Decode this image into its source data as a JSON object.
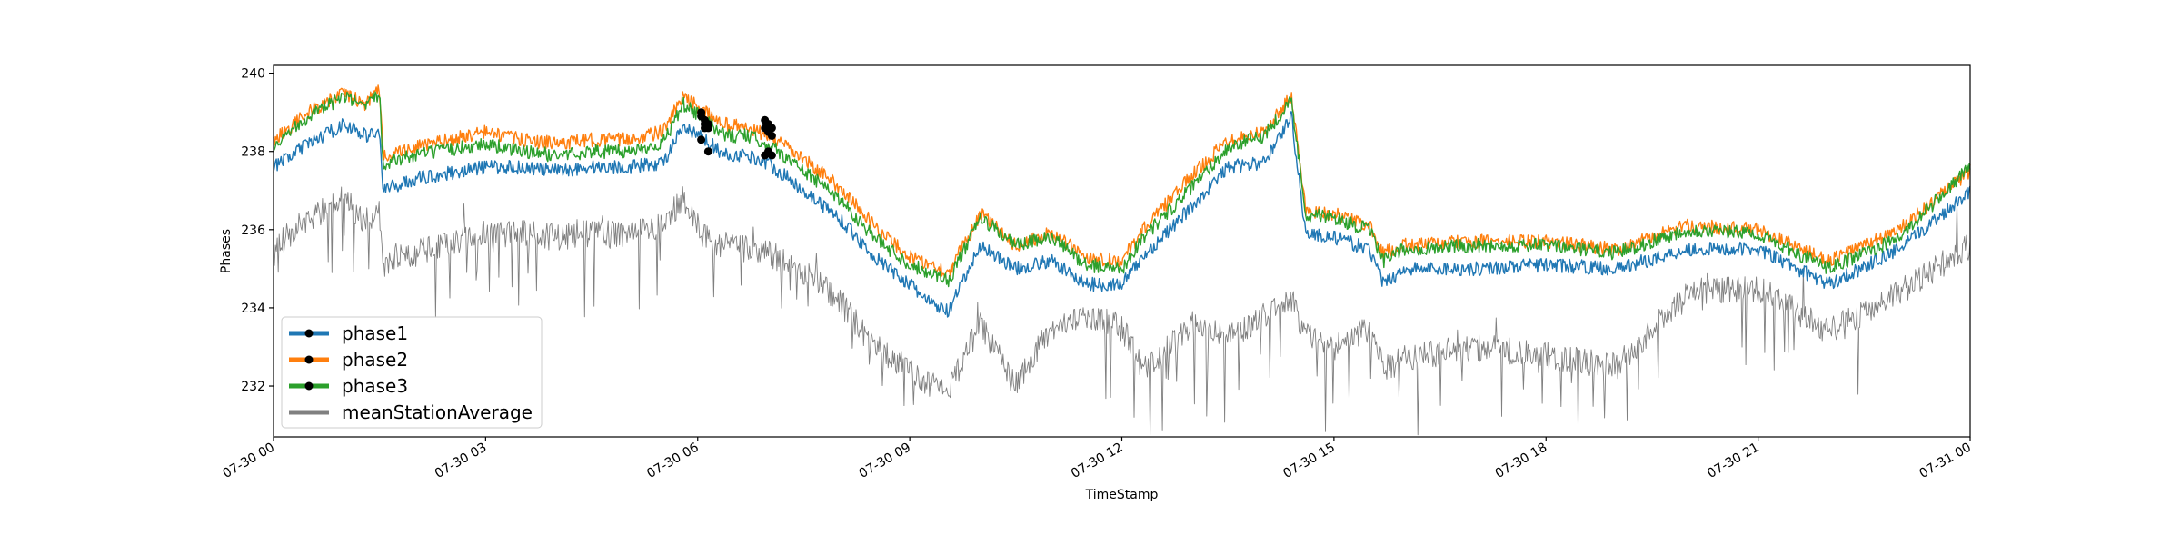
{
  "chart_data": {
    "type": "line",
    "title": "",
    "xlabel": "TimeStamp",
    "ylabel": "Phases",
    "x_ticks": [
      "07-30 00",
      "07-30 03",
      "07-30 06",
      "07-30 09",
      "07-30 12",
      "07-30 15",
      "07-30 18",
      "07-30 21",
      "07-31 00"
    ],
    "xlim_hours": [
      0,
      24
    ],
    "y_ticks": [
      "240",
      "238",
      "236",
      "234",
      "232"
    ],
    "y_tick_values": [
      240,
      238,
      236,
      234,
      232
    ],
    "ylim": [
      230.7,
      240.2
    ],
    "grid": false,
    "legend_position": "lower left",
    "x_hours": [
      0,
      0.5,
      1,
      1.3,
      1.5,
      1.55,
      2,
      3,
      3.5,
      4,
      4.5,
      5,
      5.5,
      5.8,
      6.1,
      6.4,
      6.7,
      7,
      7.5,
      8,
      8.5,
      9,
      9.3,
      9.55,
      10,
      10.5,
      11,
      11.5,
      12,
      12.3,
      13,
      13.5,
      14,
      14.4,
      14.6,
      15,
      15.5,
      15.7,
      16,
      17,
      18,
      19,
      20,
      21,
      22,
      23,
      24
    ],
    "series": [
      {
        "name": "phase1",
        "color": "#1f77b4",
        "values": [
          237.6,
          238.2,
          238.7,
          238.4,
          238.5,
          237.0,
          237.3,
          237.6,
          237.6,
          237.5,
          237.6,
          237.6,
          237.7,
          238.6,
          238.3,
          237.9,
          237.9,
          237.7,
          237.0,
          236.3,
          235.3,
          234.6,
          234.1,
          233.9,
          235.6,
          235.0,
          235.2,
          234.6,
          234.6,
          235.3,
          236.6,
          237.6,
          237.7,
          238.9,
          235.9,
          235.8,
          235.5,
          234.6,
          235.0,
          235.0,
          235.1,
          235.0,
          235.5,
          235.5,
          234.6,
          235.5,
          237.0
        ]
      },
      {
        "name": "phase2",
        "color": "#ff7f0e",
        "values": [
          238.3,
          239.0,
          239.5,
          239.2,
          239.6,
          237.9,
          238.1,
          238.5,
          238.3,
          238.2,
          238.3,
          238.3,
          238.5,
          239.4,
          239.0,
          238.7,
          238.6,
          238.4,
          237.8,
          237.1,
          236.1,
          235.3,
          235.1,
          234.9,
          236.4,
          235.6,
          235.9,
          235.3,
          235.2,
          236.0,
          237.4,
          238.3,
          238.5,
          239.4,
          236.5,
          236.4,
          236.1,
          235.4,
          235.6,
          235.7,
          235.7,
          235.5,
          236.1,
          236.0,
          235.2,
          236.0,
          237.5
        ]
      },
      {
        "name": "phase3",
        "color": "#2ca02c",
        "values": [
          238.2,
          238.9,
          239.4,
          239.1,
          239.5,
          237.7,
          237.9,
          238.2,
          238.0,
          237.9,
          238.0,
          238.0,
          238.2,
          239.2,
          238.8,
          238.4,
          238.4,
          238.2,
          237.5,
          236.8,
          235.8,
          235.1,
          234.9,
          234.7,
          236.3,
          235.6,
          235.8,
          235.1,
          235.0,
          235.8,
          237.1,
          238.1,
          238.4,
          239.3,
          236.4,
          236.3,
          236.0,
          235.2,
          235.5,
          235.6,
          235.6,
          235.4,
          236.0,
          235.9,
          235.0,
          235.8,
          237.6
        ]
      },
      {
        "name": "meanStationAverage",
        "color": "#808080",
        "values": [
          235.5,
          236.3,
          236.8,
          236.2,
          236.4,
          235.1,
          235.4,
          235.9,
          235.9,
          235.8,
          235.9,
          235.9,
          236.1,
          236.8,
          235.8,
          235.6,
          235.5,
          235.4,
          234.9,
          234.2,
          233.0,
          232.4,
          232.0,
          231.9,
          233.6,
          232.0,
          233.5,
          233.8,
          233.5,
          232.4,
          233.6,
          233.2,
          233.8,
          234.2,
          233.3,
          233.0,
          233.5,
          232.4,
          232.7,
          233.0,
          232.8,
          232.5,
          234.4,
          234.5,
          233.4,
          234.4,
          235.6
        ]
      }
    ],
    "markers": {
      "x_hours": [
        6.05,
        6.1,
        6.15,
        6.95,
        7.0,
        7.05
      ],
      "phase1": [
        238.3,
        238.6,
        238.0,
        237.9,
        238.0,
        237.9
      ],
      "phase2": [
        239.0,
        238.8,
        238.7,
        238.8,
        238.7,
        238.6
      ],
      "phase3": [
        238.9,
        238.7,
        238.6,
        238.6,
        238.5,
        238.4
      ]
    }
  }
}
